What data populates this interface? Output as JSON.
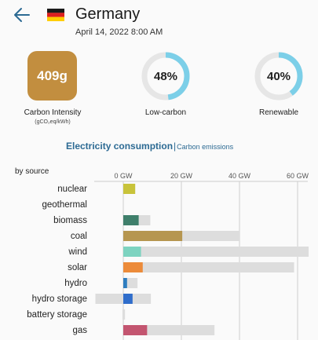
{
  "header": {
    "back_icon": "arrow-left-icon",
    "flag_icon": "germany-flag-icon",
    "zone_name": "Germany",
    "datetime": "April 14, 2022 8:00 AM"
  },
  "metrics": {
    "carbon_intensity_value": "409g",
    "carbon_intensity_label": "Carbon Intensity",
    "carbon_intensity_unit": "(gCO₂eq/kWh)",
    "carbon_intensity_color": "#c28e3f",
    "low_carbon_value": "48%",
    "low_carbon_fraction": 0.48,
    "low_carbon_label": "Low-carbon",
    "renewable_value": "40%",
    "renewable_fraction": 0.4,
    "renewable_label": "Renewable",
    "ring_color": "#7ccfe8",
    "ring_track_color": "#e6e6e6"
  },
  "section": {
    "title": "Electricity consumption",
    "separator": "|",
    "alt_link": "Carbon emissions",
    "by_source_label": "by source"
  },
  "chart_data": {
    "type": "bar",
    "title": "Electricity consumption",
    "xlabel": "",
    "ylabel": "",
    "xlim": [
      -10,
      64
    ],
    "ticks": [
      0,
      20,
      40,
      60
    ],
    "tick_labels": [
      "0 GW",
      "20 GW",
      "40 GW",
      "60 GW"
    ],
    "grid": true,
    "categories": [
      "nuclear",
      "geothermal",
      "biomass",
      "coal",
      "wind",
      "solar",
      "hydro",
      "hydro storage",
      "battery storage",
      "gas"
    ],
    "series": [
      {
        "values": [
          4.1,
          0,
          5.3,
          20.3,
          6.1,
          6.7,
          1.3,
          3.2,
          0,
          8.2
        ]
      },
      {
        "values": [
          4.1,
          0,
          9.3,
          39.8,
          63.8,
          58.8,
          4.9,
          9.5,
          0.6,
          31.4
        ]
      },
      {
        "values": [
          0,
          0,
          0,
          0,
          0,
          0,
          0,
          -9.6,
          -0.3,
          0
        ]
      }
    ],
    "colors": [
      "#c8c33a",
      "#999999",
      "#3f7f6b",
      "#b69650",
      "#7dd3c0",
      "#ec8b3a",
      "#2e7dbf",
      "#2f6dcb",
      "#aaaaaa",
      "#c35570"
    ],
    "capacity_color": "#dddddd"
  }
}
